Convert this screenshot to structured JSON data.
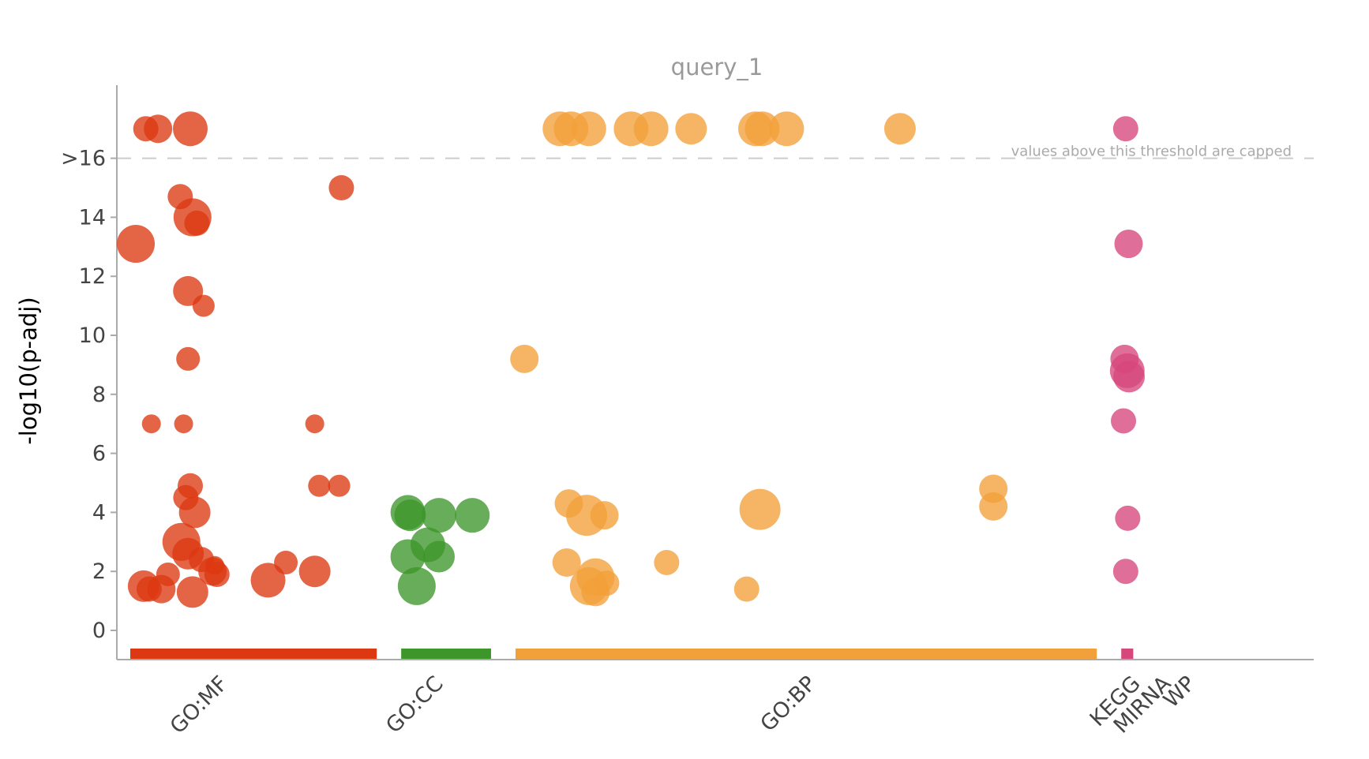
{
  "chart_data": {
    "type": "scatter",
    "title": "query_1",
    "ylabel": "-log10(p-adj)",
    "ylim": [
      -1,
      17.7
    ],
    "yticks": [
      {
        "value": 0,
        "label": "0"
      },
      {
        "value": 2,
        "label": "2"
      },
      {
        "value": 4,
        "label": "4"
      },
      {
        "value": 6,
        "label": "6"
      },
      {
        "value": 8,
        "label": "8"
      },
      {
        "value": 10,
        "label": "10"
      },
      {
        "value": 12,
        "label": "12"
      },
      {
        "value": 14,
        "label": "14"
      },
      {
        "value": 16,
        "label": ">16"
      }
    ],
    "threshold": {
      "value": 16,
      "label": "values above this threshold are capped"
    },
    "source_sizes": {
      "GO:MF": 11089,
      "GO:CC": 4043,
      "GO:BP": 26154,
      "KEGG": 540,
      "MIRNA": 0,
      "WP": 0
    },
    "series": [
      {
        "name": "GO:MF",
        "color": "#dc3912",
        "label_pos": 3802,
        "points": [
          {
            "x": 700,
            "y": 17,
            "size": 16
          },
          {
            "x": 1250,
            "y": 17,
            "size": 18
          },
          {
            "x": 2700,
            "y": 17,
            "size": 22
          },
          {
            "x": 250,
            "y": 13.1,
            "size": 24
          },
          {
            "x": 2250,
            "y": 14.7,
            "size": 16
          },
          {
            "x": 2800,
            "y": 14,
            "size": 24
          },
          {
            "x": 3000,
            "y": 13.8,
            "size": 16
          },
          {
            "x": 9500,
            "y": 15,
            "size": 16
          },
          {
            "x": 2600,
            "y": 11.5,
            "size": 19
          },
          {
            "x": 3300,
            "y": 11,
            "size": 14
          },
          {
            "x": 2600,
            "y": 9.2,
            "size": 15
          },
          {
            "x": 950,
            "y": 7,
            "size": 12
          },
          {
            "x": 2400,
            "y": 7,
            "size": 12
          },
          {
            "x": 8300,
            "y": 7,
            "size": 12
          },
          {
            "x": 2700,
            "y": 4.9,
            "size": 16
          },
          {
            "x": 2500,
            "y": 4.5,
            "size": 16
          },
          {
            "x": 2900,
            "y": 4,
            "size": 20
          },
          {
            "x": 8500,
            "y": 4.9,
            "size": 14
          },
          {
            "x": 9400,
            "y": 4.9,
            "size": 14
          },
          {
            "x": 2300,
            "y": 3,
            "size": 24
          },
          {
            "x": 2600,
            "y": 2.6,
            "size": 20
          },
          {
            "x": 3200,
            "y": 2.4,
            "size": 16
          },
          {
            "x": 1700,
            "y": 1.9,
            "size": 15
          },
          {
            "x": 3700,
            "y": 2,
            "size": 18
          },
          {
            "x": 3900,
            "y": 1.9,
            "size": 16
          },
          {
            "x": 3800,
            "y": 2.2,
            "size": 12
          },
          {
            "x": 600,
            "y": 1.5,
            "size": 20
          },
          {
            "x": 850,
            "y": 1.4,
            "size": 16
          },
          {
            "x": 1400,
            "y": 1.4,
            "size": 18
          },
          {
            "x": 2800,
            "y": 1.3,
            "size": 20
          },
          {
            "x": 6200,
            "y": 1.7,
            "size": 22
          },
          {
            "x": 7000,
            "y": 2.3,
            "size": 15
          },
          {
            "x": 8300,
            "y": 2,
            "size": 20
          }
        ]
      },
      {
        "name": "GO:CC",
        "color": "#3d962a",
        "label_pos": 1298,
        "points": [
          {
            "x": 300,
            "y": 4,
            "size": 22
          },
          {
            "x": 400,
            "y": 3.9,
            "size": 20
          },
          {
            "x": 1700,
            "y": 3.9,
            "size": 22
          },
          {
            "x": 3200,
            "y": 3.9,
            "size": 22
          },
          {
            "x": 1200,
            "y": 2.9,
            "size": 22
          },
          {
            "x": 300,
            "y": 2.5,
            "size": 22
          },
          {
            "x": 1700,
            "y": 2.5,
            "size": 20
          },
          {
            "x": 700,
            "y": 1.5,
            "size": 24
          }
        ]
      },
      {
        "name": "GO:BP",
        "color": "#f2a03a",
        "label_pos": 12928,
        "points": [
          {
            "x": 2000,
            "y": 17,
            "size": 22
          },
          {
            "x": 2500,
            "y": 17,
            "size": 22
          },
          {
            "x": 3300,
            "y": 17,
            "size": 22
          },
          {
            "x": 5200,
            "y": 17,
            "size": 22
          },
          {
            "x": 6100,
            "y": 17,
            "size": 22
          },
          {
            "x": 7900,
            "y": 17,
            "size": 20
          },
          {
            "x": 10800,
            "y": 17,
            "size": 22
          },
          {
            "x": 11100,
            "y": 17,
            "size": 22
          },
          {
            "x": 12200,
            "y": 17,
            "size": 22
          },
          {
            "x": 17300,
            "y": 17,
            "size": 20
          },
          {
            "x": 400,
            "y": 9.2,
            "size": 18
          },
          {
            "x": 2400,
            "y": 4.3,
            "size": 18
          },
          {
            "x": 3200,
            "y": 3.9,
            "size": 26
          },
          {
            "x": 4000,
            "y": 3.9,
            "size": 18
          },
          {
            "x": 11000,
            "y": 4.1,
            "size": 26
          },
          {
            "x": 21500,
            "y": 4.8,
            "size": 18
          },
          {
            "x": 21500,
            "y": 4.2,
            "size": 18
          },
          {
            "x": 2300,
            "y": 2.3,
            "size": 18
          },
          {
            "x": 3600,
            "y": 1.8,
            "size": 24
          },
          {
            "x": 3300,
            "y": 1.5,
            "size": 24
          },
          {
            "x": 3600,
            "y": 1.3,
            "size": 18
          },
          {
            "x": 4100,
            "y": 1.6,
            "size": 16
          },
          {
            "x": 6800,
            "y": 2.3,
            "size": 16
          },
          {
            "x": 10400,
            "y": 1.4,
            "size": 16
          }
        ]
      },
      {
        "name": "KEGG",
        "color": "#d6477b",
        "label_pos": 270,
        "points": [
          {
            "x": 200,
            "y": 17,
            "size": 16
          },
          {
            "x": 330,
            "y": 13.1,
            "size": 18
          },
          {
            "x": 150,
            "y": 9.2,
            "size": 18
          },
          {
            "x": 270,
            "y": 8.8,
            "size": 22
          },
          {
            "x": 350,
            "y": 8.6,
            "size": 20
          },
          {
            "x": 100,
            "y": 7.1,
            "size": 16
          },
          {
            "x": 290,
            "y": 3.8,
            "size": 16
          },
          {
            "x": 200,
            "y": 2,
            "size": 16
          }
        ]
      },
      {
        "name": "MIRNA",
        "color": "#d6477b",
        "label_pos": 0,
        "points": []
      },
      {
        "name": "WP",
        "color": "#d6477b",
        "label_pos": 0,
        "points": []
      }
    ]
  }
}
